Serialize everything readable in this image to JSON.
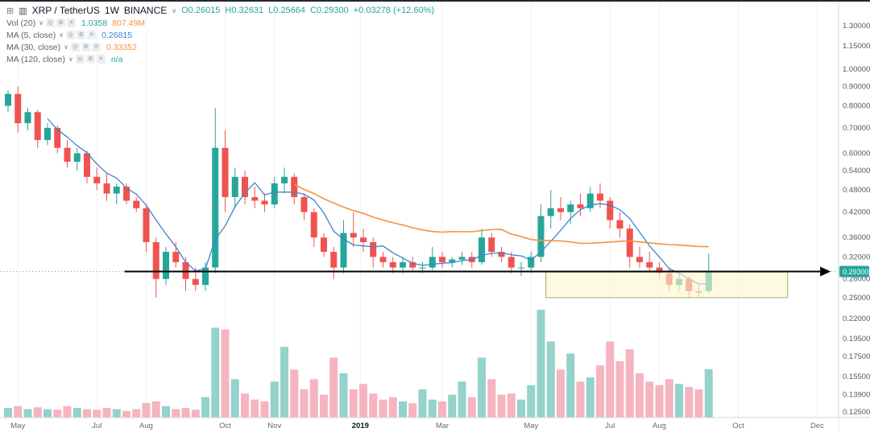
{
  "header": {
    "symbol": "XRP / TetherUS",
    "interval": "1W",
    "exchange": "BINANCE",
    "ohlc": [
      {
        "k": "O",
        "v": "0.26015"
      },
      {
        "k": "H",
        "v": "0.32631"
      },
      {
        "k": "L",
        "v": "0.25664"
      },
      {
        "k": "C",
        "v": "0.29300"
      }
    ],
    "change": "+0.03278 (+12.60%)"
  },
  "icons": {
    "grid": "⊞",
    "logo": "▥",
    "caret": "∨",
    "eye": "◎",
    "settings": "⚙",
    "close": "✕"
  },
  "indicators": [
    {
      "label": "Vol (20)",
      "values": [
        {
          "text": "1.0358"
        },
        {
          "text": "807.49M"
        }
      ]
    },
    {
      "label": "MA (5, close)",
      "values": [
        {
          "text": "0.26815"
        }
      ]
    },
    {
      "label": "MA (30, close)",
      "values": [
        {
          "text": "0.33352"
        }
      ]
    },
    {
      "label": "MA (120, close)",
      "values": [
        {
          "text": "n/a"
        }
      ]
    }
  ],
  "price_axis": {
    "labels": [
      "1.30000",
      "1.15000",
      "1.00000",
      "0.90000",
      "0.80000",
      "0.70000",
      "0.60000",
      "0.54000",
      "0.48000",
      "0.42000",
      "0.36000",
      "0.32000",
      "0.28000",
      "0.25000",
      "0.22000",
      "0.19500",
      "0.17500",
      "0.15500",
      "0.13900",
      "0.12500"
    ],
    "last_price_badge": "0.29300"
  },
  "time_axis": {
    "labels": [
      {
        "text": "May",
        "index": 1,
        "bold": false
      },
      {
        "text": "Jul",
        "index": 9,
        "bold": false
      },
      {
        "text": "Aug",
        "index": 14,
        "bold": false
      },
      {
        "text": "Oct",
        "index": 22,
        "bold": false
      },
      {
        "text": "Nov",
        "index": 27,
        "bold": false
      },
      {
        "text": "2019",
        "index": 35.7,
        "bold": true
      },
      {
        "text": "Mar",
        "index": 44,
        "bold": false
      },
      {
        "text": "May",
        "index": 53,
        "bold": false
      },
      {
        "text": "Jul",
        "index": 61,
        "bold": false
      },
      {
        "text": "Aug",
        "index": 66,
        "bold": false
      },
      {
        "text": "Oct",
        "index": 74,
        "bold": false
      },
      {
        "text": "Dec",
        "index": 82,
        "bold": false
      }
    ]
  },
  "colors": {
    "up": "#26a69a",
    "down": "#ef5350",
    "vol_up": "#94d2cb",
    "vol_down": "#f5b4bf",
    "ma5": "#4083d0",
    "ma30": "#f59140",
    "badge_bg": "#26a69a",
    "badge_text": "#ffffff",
    "grid": "#eef1f3",
    "axis_border": "#d1d4dc",
    "axis_text": "#555860",
    "box_fill": "#fbf7cf",
    "box_stroke": "#aaa96e",
    "trendline": "#000000",
    "dotted_line": "#9598a1",
    "top_strip": "#23272e"
  },
  "chart_data": {
    "type": "candlestick",
    "title": "XRP / TetherUS weekly candles with volume, BINANCE",
    "timeframe": "1W",
    "y_axis": {
      "scale": "log",
      "top": 1.3,
      "bottom": 0.118
    },
    "legend_position": "top-left",
    "grid": "vertical-only",
    "columns": [
      "open",
      "high",
      "low",
      "close",
      "volume_millions"
    ],
    "candles": [
      [
        0.8,
        0.88,
        0.77,
        0.86,
        160
      ],
      [
        0.86,
        0.9,
        0.68,
        0.72,
        190
      ],
      [
        0.72,
        0.79,
        0.69,
        0.77,
        140
      ],
      [
        0.77,
        0.78,
        0.62,
        0.65,
        170
      ],
      [
        0.65,
        0.72,
        0.63,
        0.7,
        140
      ],
      [
        0.7,
        0.71,
        0.6,
        0.62,
        130
      ],
      [
        0.62,
        0.65,
        0.55,
        0.57,
        190
      ],
      [
        0.57,
        0.62,
        0.54,
        0.6,
        160
      ],
      [
        0.6,
        0.61,
        0.5,
        0.52,
        140
      ],
      [
        0.52,
        0.55,
        0.48,
        0.5,
        130
      ],
      [
        0.5,
        0.53,
        0.45,
        0.47,
        160
      ],
      [
        0.47,
        0.5,
        0.44,
        0.49,
        140
      ],
      [
        0.49,
        0.5,
        0.44,
        0.45,
        110
      ],
      [
        0.45,
        0.46,
        0.42,
        0.43,
        140
      ],
      [
        0.43,
        0.44,
        0.33,
        0.35,
        240
      ],
      [
        0.35,
        0.36,
        0.25,
        0.28,
        270
      ],
      [
        0.28,
        0.34,
        0.27,
        0.33,
        190
      ],
      [
        0.33,
        0.35,
        0.3,
        0.31,
        140
      ],
      [
        0.31,
        0.32,
        0.26,
        0.28,
        160
      ],
      [
        0.28,
        0.3,
        0.26,
        0.27,
        130
      ],
      [
        0.27,
        0.31,
        0.26,
        0.3,
        340
      ],
      [
        0.3,
        0.79,
        0.29,
        0.62,
        1500
      ],
      [
        0.62,
        0.69,
        0.42,
        0.46,
        1470
      ],
      [
        0.46,
        0.55,
        0.43,
        0.52,
        640
      ],
      [
        0.52,
        0.54,
        0.44,
        0.46,
        400
      ],
      [
        0.46,
        0.49,
        0.43,
        0.45,
        300
      ],
      [
        0.45,
        0.47,
        0.42,
        0.44,
        270
      ],
      [
        0.44,
        0.52,
        0.43,
        0.5,
        600
      ],
      [
        0.5,
        0.55,
        0.47,
        0.52,
        1180
      ],
      [
        0.52,
        0.53,
        0.44,
        0.46,
        800
      ],
      [
        0.46,
        0.47,
        0.4,
        0.42,
        470
      ],
      [
        0.42,
        0.43,
        0.34,
        0.36,
        640
      ],
      [
        0.36,
        0.37,
        0.32,
        0.33,
        380
      ],
      [
        0.33,
        0.34,
        0.28,
        0.3,
        1000
      ],
      [
        0.3,
        0.4,
        0.29,
        0.37,
        740
      ],
      [
        0.37,
        0.42,
        0.34,
        0.36,
        470
      ],
      [
        0.36,
        0.38,
        0.33,
        0.35,
        560
      ],
      [
        0.35,
        0.36,
        0.3,
        0.32,
        400
      ],
      [
        0.32,
        0.33,
        0.3,
        0.31,
        300
      ],
      [
        0.31,
        0.32,
        0.29,
        0.3,
        340
      ],
      [
        0.3,
        0.32,
        0.29,
        0.31,
        270
      ],
      [
        0.31,
        0.32,
        0.295,
        0.3,
        240
      ],
      [
        0.3,
        0.31,
        0.29,
        0.3,
        470
      ],
      [
        0.3,
        0.34,
        0.295,
        0.32,
        300
      ],
      [
        0.32,
        0.33,
        0.3,
        0.31,
        270
      ],
      [
        0.31,
        0.32,
        0.3,
        0.315,
        380
      ],
      [
        0.315,
        0.33,
        0.305,
        0.32,
        600
      ],
      [
        0.32,
        0.33,
        0.3,
        0.31,
        340
      ],
      [
        0.31,
        0.38,
        0.305,
        0.36,
        1000
      ],
      [
        0.36,
        0.37,
        0.32,
        0.33,
        640
      ],
      [
        0.33,
        0.34,
        0.31,
        0.32,
        380
      ],
      [
        0.32,
        0.33,
        0.29,
        0.3,
        400
      ],
      [
        0.3,
        0.31,
        0.285,
        0.3,
        300
      ],
      [
        0.3,
        0.33,
        0.29,
        0.32,
        540
      ],
      [
        0.32,
        0.44,
        0.31,
        0.41,
        1800
      ],
      [
        0.41,
        0.48,
        0.38,
        0.43,
        1270
      ],
      [
        0.43,
        0.46,
        0.4,
        0.42,
        800
      ],
      [
        0.42,
        0.45,
        0.39,
        0.44,
        1070
      ],
      [
        0.44,
        0.47,
        0.41,
        0.43,
        600
      ],
      [
        0.43,
        0.49,
        0.42,
        0.47,
        670
      ],
      [
        0.47,
        0.5,
        0.43,
        0.45,
        870
      ],
      [
        0.45,
        0.46,
        0.38,
        0.4,
        1270
      ],
      [
        0.4,
        0.42,
        0.36,
        0.38,
        940
      ],
      [
        0.38,
        0.39,
        0.3,
        0.32,
        1140
      ],
      [
        0.32,
        0.34,
        0.3,
        0.31,
        740
      ],
      [
        0.31,
        0.33,
        0.29,
        0.3,
        600
      ],
      [
        0.3,
        0.31,
        0.28,
        0.29,
        540
      ],
      [
        0.29,
        0.3,
        0.26,
        0.27,
        640
      ],
      [
        0.27,
        0.29,
        0.26,
        0.28,
        560
      ],
      [
        0.28,
        0.285,
        0.25,
        0.26,
        510
      ],
      [
        0.26,
        0.27,
        0.25,
        0.258,
        470
      ],
      [
        0.26015,
        0.32631,
        0.25664,
        0.293,
        807.49
      ]
    ],
    "overlays": [
      {
        "name": "MA 5 close",
        "period": 5,
        "color_key": "ma5"
      },
      {
        "name": "MA 30 close",
        "period": 30,
        "color_key": "ma30"
      }
    ],
    "annotations": {
      "price_line": {
        "price": 0.293,
        "style": "dotted"
      },
      "trend_arrow": {
        "price": 0.293,
        "x1_index": 11.8,
        "x2_index": 82.3
      },
      "support_box": {
        "x1_index": 54.5,
        "x2_index": 79.0,
        "price_top": 0.292,
        "price_bottom": 0.25
      }
    }
  }
}
